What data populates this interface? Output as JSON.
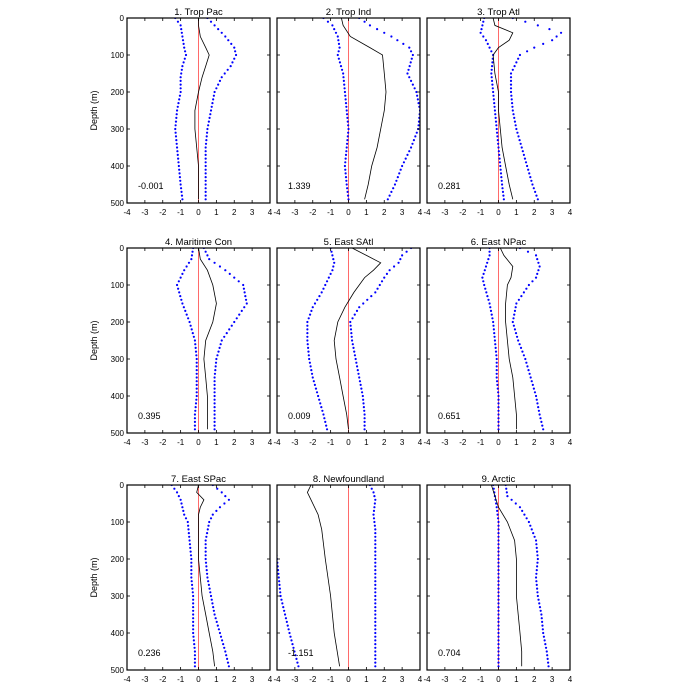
{
  "chart_data": {
    "type": "line",
    "layout": "3x3 panels",
    "x_ticks": [
      -4,
      -3,
      -2,
      -1,
      0,
      1,
      2,
      3,
      4
    ],
    "y_ticks": [
      0,
      100,
      200,
      300,
      400,
      500
    ],
    "xlim": [
      -4,
      4
    ],
    "ylim": [
      0,
      500
    ],
    "y_axis_inverted": true,
    "ylabel": "Depth (m)",
    "series_styles": {
      "mean": {
        "style": "solid line",
        "color": "#000000"
      },
      "spread_lower": {
        "style": "dotted",
        "color": "#0000ff"
      },
      "spread_upper": {
        "style": "dotted",
        "color": "#0000ff"
      },
      "zero_line": {
        "style": "vertical line at x=0",
        "color": "#ff6a6a"
      }
    },
    "panels": [
      {
        "title": "1. Trop Pac",
        "corner_value": "-0.001",
        "depth": [
          0,
          20,
          50,
          80,
          100,
          130,
          160,
          200,
          250,
          300,
          350,
          400,
          450,
          490
        ],
        "mean": [
          0,
          0,
          0.1,
          0.4,
          0.6,
          0.4,
          0.2,
          0.0,
          -0.2,
          -0.2,
          -0.1,
          0.0,
          0.0,
          0.0
        ],
        "lower": [
          -1.3,
          -1.0,
          -0.9,
          -0.8,
          -0.7,
          -0.9,
          -1.0,
          -1.0,
          -1.2,
          -1.3,
          -1.2,
          -1.1,
          -1.0,
          -0.9
        ],
        "upper": [
          0.5,
          0.9,
          1.5,
          2.0,
          2.1,
          1.8,
          1.3,
          0.9,
          0.7,
          0.5,
          0.4,
          0.4,
          0.4,
          0.4
        ]
      },
      {
        "title": "2. Trop Ind",
        "corner_value": "1.339",
        "depth": [
          0,
          20,
          50,
          80,
          100,
          150,
          200,
          250,
          300,
          350,
          400,
          450,
          490
        ],
        "mean": [
          -0.4,
          -0.3,
          0.1,
          1.2,
          1.9,
          2.0,
          2.1,
          2.0,
          1.8,
          1.6,
          1.3,
          1.1,
          0.9
        ],
        "lower": [
          -1.4,
          -0.9,
          -0.6,
          -0.5,
          -0.6,
          -0.3,
          -0.2,
          -0.1,
          0.0,
          -0.1,
          -0.2,
          -0.1,
          0.0
        ],
        "upper": [
          0.6,
          1.2,
          2.4,
          3.4,
          3.6,
          3.3,
          3.8,
          4.0,
          3.9,
          3.5,
          3.0,
          2.6,
          2.2
        ]
      },
      {
        "title": "3. Trop Atl",
        "corner_value": "0.281",
        "depth": [
          0,
          20,
          40,
          60,
          80,
          100,
          150,
          200,
          250,
          300,
          350,
          400,
          450,
          490
        ],
        "mean": [
          -0.3,
          -0.2,
          0.8,
          0.6,
          0.0,
          -0.3,
          -0.2,
          0.0,
          0.0,
          0.1,
          0.2,
          0.4,
          0.6,
          0.8
        ],
        "lower": [
          -0.8,
          -0.9,
          -1.0,
          -0.7,
          -0.5,
          -0.3,
          -0.4,
          -0.3,
          -0.2,
          -0.1,
          0.0,
          0.1,
          0.2,
          0.3
        ],
        "upper": [
          0.8,
          2.2,
          3.5,
          3.0,
          2.0,
          1.2,
          0.7,
          0.7,
          0.8,
          1.0,
          1.3,
          1.6,
          1.9,
          2.2
        ]
      },
      {
        "title": "4. Maritime Con",
        "corner_value": "0.395",
        "depth": [
          0,
          30,
          60,
          100,
          150,
          200,
          250,
          300,
          350,
          400,
          450,
          490
        ],
        "mean": [
          0.0,
          0.1,
          0.5,
          0.8,
          1.0,
          0.8,
          0.4,
          0.3,
          0.4,
          0.5,
          0.5,
          0.5
        ],
        "lower": [
          -0.3,
          -0.4,
          -0.8,
          -1.2,
          -0.9,
          -0.5,
          -0.2,
          -0.1,
          -0.1,
          -0.1,
          -0.2,
          -0.2
        ],
        "upper": [
          0.3,
          0.6,
          1.5,
          2.5,
          2.7,
          2.0,
          1.3,
          1.0,
          0.9,
          0.9,
          0.9,
          0.9
        ]
      },
      {
        "title": "5. East SAtl",
        "corner_value": "0.009",
        "depth": [
          0,
          20,
          40,
          60,
          80,
          120,
          160,
          200,
          250,
          300,
          350,
          400,
          450,
          490
        ],
        "mean": [
          0.2,
          1.0,
          1.8,
          1.4,
          0.9,
          0.3,
          -0.2,
          -0.6,
          -0.8,
          -0.7,
          -0.5,
          -0.3,
          -0.1,
          0.0
        ],
        "lower": [
          -1.0,
          -0.9,
          -0.8,
          -0.9,
          -1.1,
          -1.5,
          -2.0,
          -2.3,
          -2.3,
          -2.2,
          -2.0,
          -1.7,
          -1.4,
          -1.2
        ],
        "upper": [
          3.5,
          3.0,
          2.8,
          2.3,
          2.0,
          1.5,
          0.6,
          0.1,
          0.2,
          0.4,
          0.6,
          0.8,
          0.9,
          0.9
        ]
      },
      {
        "title": "6. East NPac",
        "corner_value": "0.651",
        "depth": [
          0,
          20,
          50,
          80,
          100,
          150,
          200,
          250,
          300,
          350,
          400,
          450,
          490
        ],
        "mean": [
          0.1,
          0.3,
          0.8,
          0.7,
          0.5,
          0.4,
          0.4,
          0.5,
          0.6,
          0.8,
          0.9,
          1.0,
          1.0
        ],
        "lower": [
          -0.5,
          -0.5,
          -0.7,
          -0.9,
          -0.8,
          -0.5,
          -0.3,
          -0.2,
          -0.1,
          -0.1,
          0.0,
          0.0,
          0.0
        ],
        "upper": [
          1.2,
          2.1,
          2.3,
          2.1,
          1.7,
          1.0,
          0.8,
          1.1,
          1.5,
          1.8,
          2.1,
          2.3,
          2.5
        ]
      },
      {
        "title": "7. East SPac",
        "corner_value": "0.236",
        "depth": [
          0,
          20,
          40,
          60,
          80,
          100,
          150,
          200,
          250,
          300,
          350,
          400,
          450,
          490
        ],
        "mean": [
          0.0,
          -0.1,
          0.3,
          0.1,
          0.0,
          0.0,
          0.0,
          0.0,
          0.1,
          0.2,
          0.4,
          0.6,
          0.8,
          0.9
        ],
        "lower": [
          -1.5,
          -1.2,
          -1.0,
          -0.9,
          -0.8,
          -0.6,
          -0.5,
          -0.4,
          -0.4,
          -0.3,
          -0.3,
          -0.3,
          -0.2,
          -0.2
        ],
        "upper": [
          0.8,
          1.3,
          1.7,
          1.2,
          0.8,
          0.6,
          0.4,
          0.4,
          0.5,
          0.7,
          0.9,
          1.2,
          1.5,
          1.7
        ]
      },
      {
        "title": "8. Newfoundland",
        "corner_value": "-1.151",
        "depth": [
          0,
          20,
          40,
          80,
          120,
          200,
          300,
          400,
          490
        ],
        "mean": [
          -2.1,
          -2.3,
          -2.1,
          -1.7,
          -1.5,
          -1.3,
          -1.0,
          -0.8,
          -0.5
        ],
        "lower": [
          -5.0,
          -5.0,
          -5.0,
          -4.5,
          -4.2,
          -4.0,
          -3.8,
          -3.3,
          -2.8
        ],
        "upper": [
          1.2,
          1.4,
          1.5,
          1.4,
          1.5,
          1.5,
          1.5,
          1.5,
          1.5
        ]
      },
      {
        "title": "9. Arctic",
        "corner_value": "0.704",
        "depth": [
          0,
          30,
          60,
          100,
          150,
          200,
          250,
          300,
          350,
          400,
          450,
          490
        ],
        "mean": [
          -0.4,
          -0.2,
          0.0,
          0.5,
          0.9,
          1.0,
          1.0,
          1.0,
          1.1,
          1.2,
          1.3,
          1.3
        ],
        "lower": [
          -0.3,
          -0.2,
          -0.1,
          0.0,
          0.0,
          0.0,
          0.0,
          0.0,
          0.0,
          0.0,
          0.0,
          0.0
        ],
        "upper": [
          0.4,
          0.5,
          1.2,
          1.7,
          2.1,
          2.2,
          2.1,
          2.2,
          2.4,
          2.5,
          2.7,
          2.8
        ]
      }
    ]
  }
}
